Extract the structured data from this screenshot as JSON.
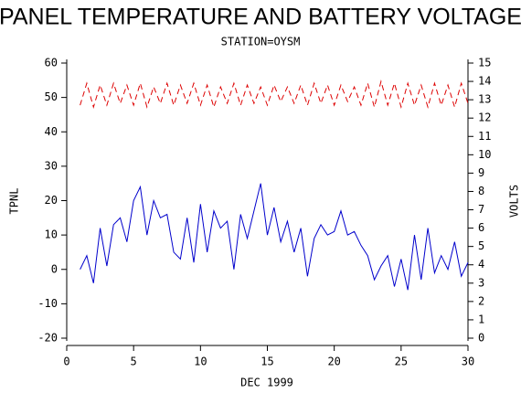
{
  "chart_data": {
    "type": "line",
    "title": "PANEL TEMPERATURE AND BATTERY VOLTAGE",
    "subtitle": "STATION=OYSM",
    "x_label": "DEC 1999",
    "y_label": "TPNL",
    "y2_label": "VOLTS",
    "xlim": [
      0,
      30
    ],
    "xticks": [
      0,
      5,
      10,
      15,
      20,
      25,
      30
    ],
    "ylim": [
      -20,
      60
    ],
    "yticks": [
      -20,
      -10,
      0,
      10,
      20,
      30,
      40,
      50,
      60
    ],
    "y2lim": [
      0,
      15
    ],
    "y2ticks": [
      0,
      1,
      2,
      3,
      4,
      5,
      6,
      7,
      8,
      9,
      10,
      11,
      12,
      13,
      14,
      15
    ],
    "x": [
      1.0,
      1.5,
      2.0,
      2.5,
      3.0,
      3.5,
      4.0,
      4.5,
      5.0,
      5.5,
      6.0,
      6.5,
      7.0,
      7.5,
      8.0,
      8.5,
      9.0,
      9.5,
      10.0,
      10.5,
      11.0,
      11.5,
      12.0,
      12.5,
      13.0,
      13.5,
      14.0,
      14.5,
      15.0,
      15.5,
      16.0,
      16.5,
      17.0,
      17.5,
      18.0,
      18.5,
      19.0,
      19.5,
      20.0,
      20.5,
      21.0,
      21.5,
      22.0,
      22.5,
      23.0,
      23.5,
      24.0,
      24.5,
      25.0,
      25.5,
      26.0,
      26.5,
      27.0,
      27.5,
      28.0,
      28.5,
      29.0,
      29.5,
      30.0
    ],
    "series": [
      {
        "name": "TPNL",
        "color": "#0000cc",
        "dashed": false,
        "values": [
          0,
          4,
          -4,
          12,
          1,
          13,
          15,
          8,
          20,
          24,
          10,
          20,
          15,
          16,
          5,
          3,
          15,
          2,
          19,
          5,
          17,
          12,
          14,
          0,
          16,
          9,
          17,
          25,
          10,
          18,
          8,
          14,
          5,
          12,
          -2,
          9,
          13,
          10,
          11,
          17,
          10,
          11,
          7,
          4,
          -3,
          1,
          4,
          -5,
          3,
          -6,
          10,
          -3,
          12,
          -1,
          4,
          0,
          8,
          -2,
          2
        ]
      },
      {
        "name": "VOLTS",
        "color": "#dd0000",
        "dashed": true,
        "axis": "y2",
        "values": [
          12.7,
          13.9,
          12.6,
          13.8,
          12.7,
          13.9,
          12.8,
          13.8,
          12.7,
          13.9,
          12.6,
          13.7,
          12.8,
          13.9,
          12.7,
          13.8,
          12.8,
          13.9,
          12.7,
          13.8,
          12.6,
          13.7,
          12.8,
          13.9,
          12.7,
          13.8,
          12.8,
          13.7,
          12.7,
          13.8,
          12.9,
          13.7,
          12.8,
          13.8,
          12.7,
          13.9,
          12.8,
          13.8,
          12.7,
          13.8,
          12.9,
          13.7,
          12.7,
          13.9,
          12.6,
          14.0,
          12.7,
          13.9,
          12.6,
          13.9,
          12.7,
          13.8,
          12.6,
          13.9,
          12.7,
          13.8,
          12.6,
          13.9,
          12.8
        ]
      }
    ]
  }
}
